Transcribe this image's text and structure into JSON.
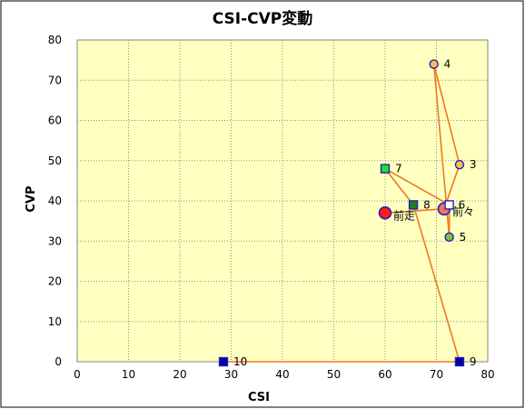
{
  "chart_data": {
    "type": "scatter",
    "title": "CSI-CVP変動",
    "xlabel": "CSI",
    "ylabel": "CVP",
    "xlim": [
      0,
      80
    ],
    "ylim": [
      0,
      80
    ],
    "x_ticks": [
      "0",
      "10",
      "20",
      "30",
      "40",
      "50",
      "60",
      "70",
      "80"
    ],
    "y_ticks": [
      "0",
      "10",
      "20",
      "30",
      "40",
      "50",
      "60",
      "70",
      "80"
    ],
    "grid": true,
    "plot_background": "#ffffc0",
    "line_color": "#f07820",
    "frame_border": "#000000",
    "points": [
      {
        "label": "前走",
        "x": 60,
        "y": 37,
        "shape": "circle-large",
        "fill": "#ff1a1a",
        "stroke": "#2020c0"
      },
      {
        "label": "前々",
        "x": 71.5,
        "y": 38,
        "shape": "circle-large",
        "fill": "#f07850",
        "stroke": "#2020c0"
      },
      {
        "label": "3",
        "x": 74.5,
        "y": 49,
        "shape": "circle",
        "fill": "#ffc040",
        "stroke": "#2020c0"
      },
      {
        "label": "4",
        "x": 69.5,
        "y": 74,
        "shape": "circle",
        "fill": "#ffc040",
        "stroke": "#2020c0"
      },
      {
        "label": "5",
        "x": 72.5,
        "y": 31,
        "shape": "circle",
        "fill": "#80c040",
        "stroke": "#2020c0"
      },
      {
        "label": "6",
        "x": 72.5,
        "y": 39,
        "shape": "square",
        "fill": "#ffffff",
        "stroke": "#2020c0"
      },
      {
        "label": "7",
        "x": 60,
        "y": 48,
        "shape": "square",
        "fill": "#20e020",
        "stroke": "#2020c0"
      },
      {
        "label": "8",
        "x": 65.5,
        "y": 39,
        "shape": "square",
        "fill": "#208020",
        "stroke": "#2020c0"
      },
      {
        "label": "9",
        "x": 74.5,
        "y": 0,
        "shape": "square",
        "fill": "#0000a0",
        "stroke": "#2020c0"
      },
      {
        "label": "10",
        "x": 28.5,
        "y": 0,
        "shape": "square",
        "fill": "#0000a0",
        "stroke": "#2020c0"
      }
    ]
  }
}
